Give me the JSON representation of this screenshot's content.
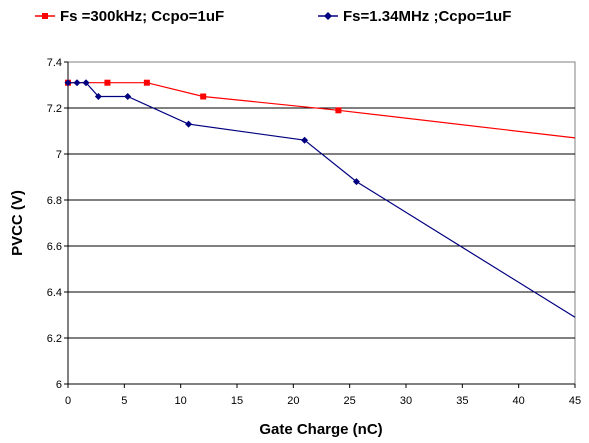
{
  "chart_data": {
    "type": "line",
    "xlabel": "Gate Charge (nC)",
    "ylabel": "PVCC (V)",
    "xlim": [
      0,
      45
    ],
    "ylim": [
      6,
      7.4
    ],
    "xticks": [
      0,
      5,
      10,
      15,
      20,
      25,
      30,
      35,
      40,
      45
    ],
    "yticks": [
      6,
      6.2,
      6.4,
      6.6,
      6.8,
      7,
      7.2,
      7.4
    ],
    "grid": "horizontal",
    "legend_position": "top",
    "series": [
      {
        "name": "Fs =300kHz; Ccpo=1uF",
        "color": "#ff0000",
        "marker": "square",
        "points": [
          [
            0,
            7.31
          ],
          [
            3.5,
            7.31
          ],
          [
            7,
            7.31
          ],
          [
            12,
            7.25
          ],
          [
            24,
            7.19
          ],
          [
            45,
            7.07
          ]
        ],
        "marked": [
          true,
          true,
          true,
          true,
          true,
          false
        ]
      },
      {
        "name": "Fs=1.34MHz ;Ccpo=1uF",
        "color": "#000080",
        "marker": "diamond",
        "points": [
          [
            0,
            7.31
          ],
          [
            0.8,
            7.31
          ],
          [
            1.6,
            7.31
          ],
          [
            2.7,
            7.25
          ],
          [
            5.3,
            7.25
          ],
          [
            10.7,
            7.13
          ],
          [
            21,
            7.06
          ],
          [
            25.6,
            6.88
          ],
          [
            45,
            6.29
          ]
        ],
        "marked": [
          true,
          true,
          true,
          true,
          true,
          true,
          true,
          true,
          false
        ]
      }
    ]
  }
}
